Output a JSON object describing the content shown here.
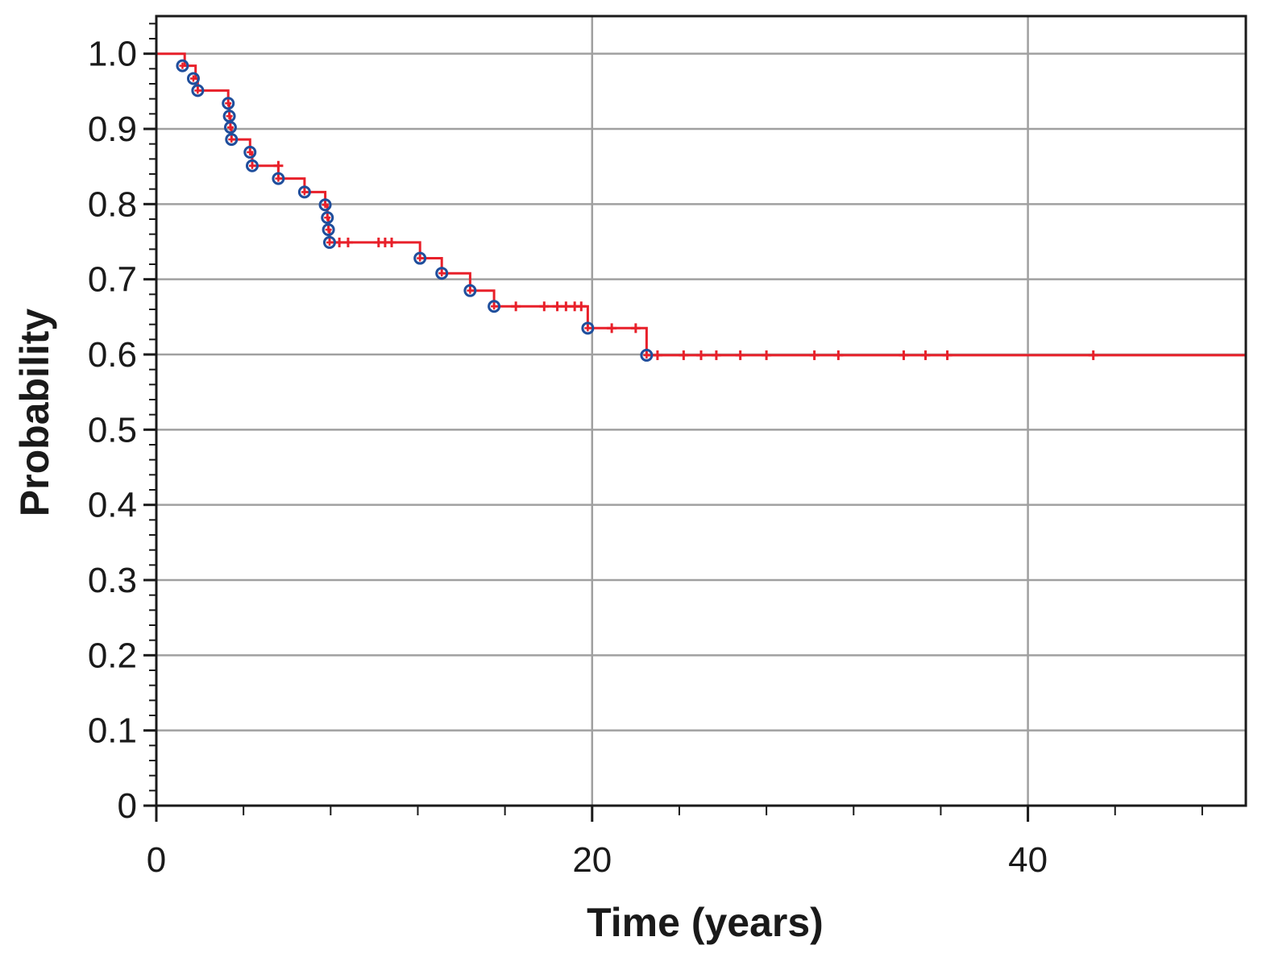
{
  "chart_data": {
    "type": "line",
    "xlabel": "Time (years)",
    "ylabel": "Probability",
    "xlim": [
      0,
      50
    ],
    "ylim": [
      0,
      1.05
    ],
    "x_ticks": [
      0,
      20,
      40
    ],
    "x_tick_labels": [
      "0",
      "20",
      "40"
    ],
    "y_ticks": [
      0,
      0.1,
      0.2,
      0.3,
      0.4,
      0.5,
      0.6,
      0.7,
      0.8,
      0.9,
      1.0
    ],
    "y_tick_labels": [
      "0",
      "0.1",
      "0.2",
      "0.3",
      "0.4",
      "0.5",
      "0.6",
      "0.7",
      "0.8",
      "0.9",
      "1.0"
    ],
    "grid": true,
    "colors": {
      "curve": "#e8202a",
      "event_marker": "#1f4e9c",
      "grid": "#a0a0a0",
      "axis": "#1a1a1a"
    },
    "series": [
      {
        "step_points": [
          [
            0,
            1.0
          ],
          [
            1.3,
            1.0
          ],
          [
            1.3,
            0.984
          ],
          [
            1.8,
            0.984
          ],
          [
            1.8,
            0.967
          ],
          [
            1.9,
            0.967
          ],
          [
            1.9,
            0.951
          ],
          [
            3.3,
            0.951
          ],
          [
            3.3,
            0.934
          ],
          [
            3.35,
            0.934
          ],
          [
            3.35,
            0.917
          ],
          [
            3.4,
            0.917
          ],
          [
            3.4,
            0.902
          ],
          [
            3.45,
            0.902
          ],
          [
            3.45,
            0.886
          ],
          [
            4.3,
            0.886
          ],
          [
            4.3,
            0.869
          ],
          [
            4.4,
            0.869
          ],
          [
            4.4,
            0.851
          ],
          [
            5.6,
            0.851
          ],
          [
            5.6,
            0.834
          ],
          [
            6.8,
            0.834
          ],
          [
            6.8,
            0.816
          ],
          [
            7.75,
            0.816
          ],
          [
            7.75,
            0.799
          ],
          [
            7.85,
            0.799
          ],
          [
            7.85,
            0.782
          ],
          [
            7.9,
            0.782
          ],
          [
            7.9,
            0.766
          ],
          [
            7.95,
            0.766
          ],
          [
            7.95,
            0.749
          ],
          [
            12.1,
            0.749
          ],
          [
            12.1,
            0.728
          ],
          [
            13.1,
            0.728
          ],
          [
            13.1,
            0.708
          ],
          [
            14.4,
            0.708
          ],
          [
            14.4,
            0.685
          ],
          [
            15.5,
            0.685
          ],
          [
            15.5,
            0.664
          ],
          [
            19.8,
            0.664
          ],
          [
            19.8,
            0.635
          ],
          [
            22.5,
            0.635
          ],
          [
            22.5,
            0.599
          ],
          [
            50,
            0.599
          ]
        ],
        "events": [
          [
            1.2,
            0.984
          ],
          [
            1.7,
            0.967
          ],
          [
            1.9,
            0.951
          ],
          [
            3.3,
            0.934
          ],
          [
            3.35,
            0.917
          ],
          [
            3.4,
            0.902
          ],
          [
            3.45,
            0.886
          ],
          [
            4.3,
            0.869
          ],
          [
            4.4,
            0.851
          ],
          [
            5.6,
            0.834
          ],
          [
            6.8,
            0.816
          ],
          [
            7.75,
            0.799
          ],
          [
            7.85,
            0.782
          ],
          [
            7.9,
            0.766
          ],
          [
            7.95,
            0.749
          ],
          [
            12.1,
            0.728
          ],
          [
            13.1,
            0.708
          ],
          [
            14.4,
            0.685
          ],
          [
            15.5,
            0.664
          ],
          [
            19.8,
            0.635
          ],
          [
            22.5,
            0.599
          ]
        ],
        "censored": [
          [
            5.6,
            0.851
          ],
          [
            8.4,
            0.749
          ],
          [
            8.8,
            0.749
          ],
          [
            10.2,
            0.749
          ],
          [
            10.5,
            0.749
          ],
          [
            10.8,
            0.749
          ],
          [
            16.5,
            0.664
          ],
          [
            17.8,
            0.664
          ],
          [
            18.4,
            0.664
          ],
          [
            18.8,
            0.664
          ],
          [
            19.2,
            0.664
          ],
          [
            19.5,
            0.664
          ],
          [
            20.9,
            0.635
          ],
          [
            22.0,
            0.635
          ],
          [
            23.0,
            0.599
          ],
          [
            24.2,
            0.599
          ],
          [
            25.0,
            0.599
          ],
          [
            25.7,
            0.599
          ],
          [
            26.8,
            0.599
          ],
          [
            28.0,
            0.599
          ],
          [
            30.2,
            0.599
          ],
          [
            31.3,
            0.599
          ],
          [
            34.3,
            0.599
          ],
          [
            35.3,
            0.599
          ],
          [
            36.3,
            0.599
          ],
          [
            43.0,
            0.599
          ]
        ]
      }
    ]
  }
}
